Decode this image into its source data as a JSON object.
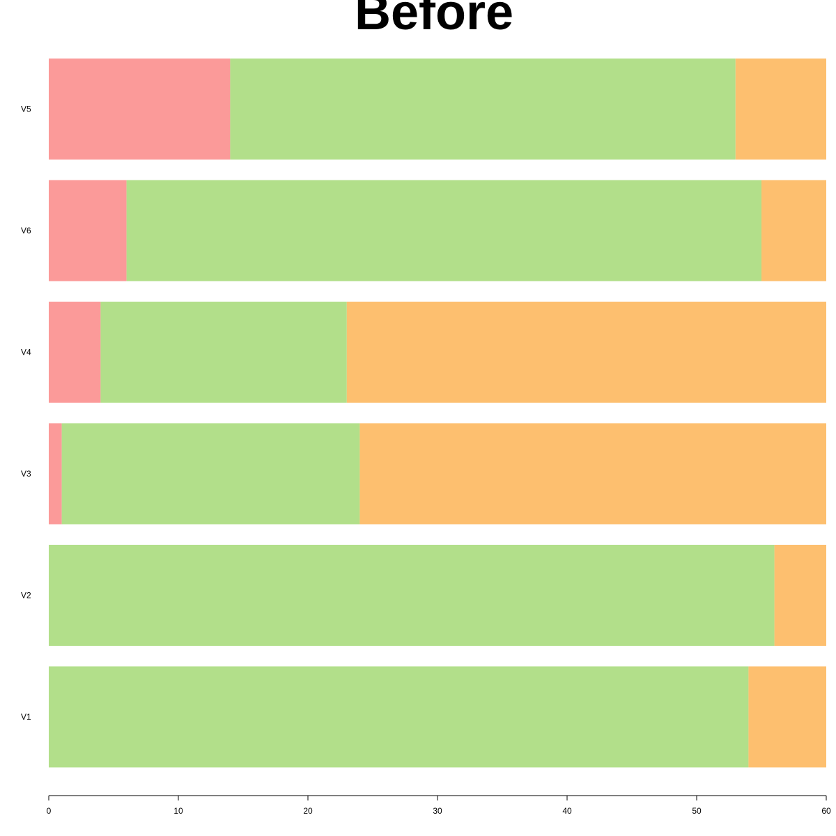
{
  "chart_data": {
    "type": "bar",
    "orientation": "horizontal",
    "stacked": true,
    "title": "Before",
    "xlabel": "",
    "ylabel": "",
    "xlim": [
      0,
      60
    ],
    "x_ticks": [
      0,
      10,
      20,
      30,
      40,
      50,
      60
    ],
    "categories": [
      "V5",
      "V6",
      "V4",
      "V3",
      "V2",
      "V1"
    ],
    "series": [
      {
        "values": [
          14,
          6,
          4,
          1,
          0,
          0
        ],
        "color": "#fb9a99"
      },
      {
        "values": [
          39,
          49,
          19,
          23,
          56,
          54
        ],
        "color": "#b2df8a"
      },
      {
        "values": [
          7,
          5,
          37,
          36,
          4,
          6
        ],
        "color": "#fdbf6f"
      }
    ],
    "grid": false,
    "legend": "none"
  }
}
